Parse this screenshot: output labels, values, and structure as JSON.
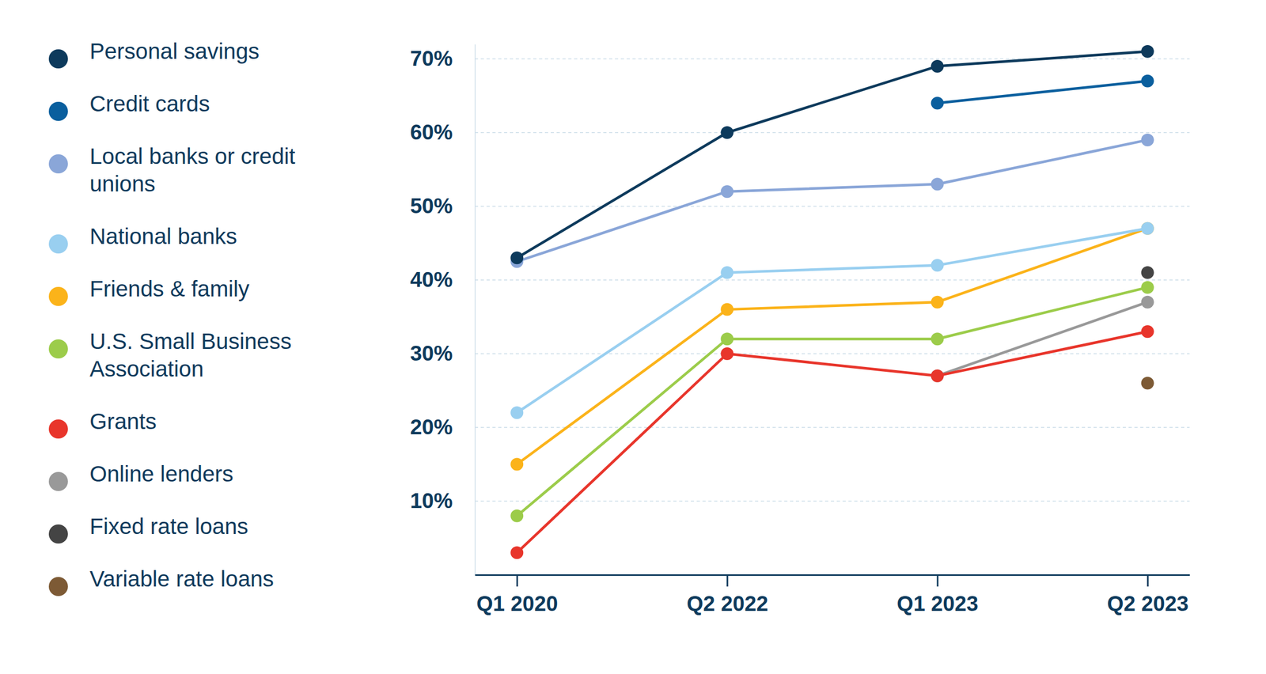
{
  "chart_data": {
    "type": "line",
    "categories": [
      "Q1 2020",
      "Q2 2022",
      "Q1 2023",
      "Q2 2023"
    ],
    "series": [
      {
        "name": "Personal savings",
        "color": "#0d3a5c",
        "values": [
          43,
          60,
          69,
          71
        ]
      },
      {
        "name": "Credit cards",
        "color": "#0a5f9e",
        "values": [
          null,
          null,
          64,
          67
        ]
      },
      {
        "name": "Local banks or credit unions",
        "color": "#8aa6d8",
        "values": [
          42.5,
          52,
          53,
          59
        ]
      },
      {
        "name": "National banks",
        "color": "#99cff0",
        "values": [
          22,
          41,
          42,
          47
        ]
      },
      {
        "name": "Friends & family",
        "color": "#fbb31a",
        "values": [
          15,
          36,
          37,
          47
        ]
      },
      {
        "name": "U.S. Small Business Association",
        "color": "#9ccc4a",
        "values": [
          8,
          32,
          32,
          39
        ]
      },
      {
        "name": "Grants",
        "color": "#e8352b",
        "values": [
          3,
          30,
          27,
          33
        ]
      },
      {
        "name": "Online lenders",
        "color": "#999999",
        "values": [
          null,
          null,
          27,
          37
        ]
      },
      {
        "name": "Fixed rate loans",
        "color": "#444444",
        "values": [
          null,
          null,
          null,
          41
        ]
      },
      {
        "name": "Variable rate loans",
        "color": "#7d5a35",
        "values": [
          null,
          null,
          null,
          26
        ]
      }
    ],
    "ylim": [
      0,
      72
    ],
    "yticks": [
      {
        "value": 10,
        "label": "10%"
      },
      {
        "value": 20,
        "label": "20%"
      },
      {
        "value": 30,
        "label": "30%"
      },
      {
        "value": 40,
        "label": "40%"
      },
      {
        "value": 50,
        "label": "50%"
      },
      {
        "value": 60,
        "label": "60%"
      },
      {
        "value": 70,
        "label": "70%"
      }
    ],
    "grid": true,
    "legend": "left",
    "marker": "circle"
  }
}
